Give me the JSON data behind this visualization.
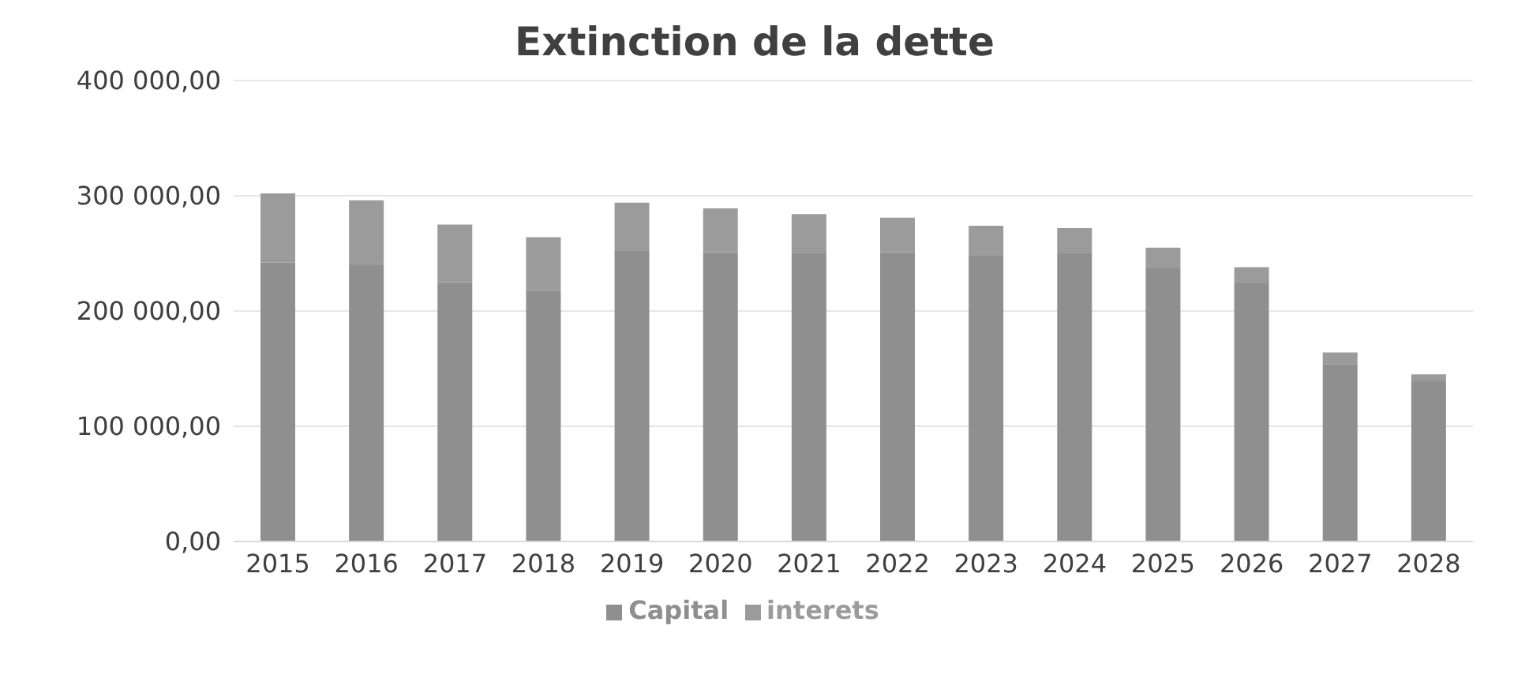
{
  "chart_data": {
    "type": "bar",
    "title": "Extinction de la dette",
    "stacked": true,
    "categories": [
      "2015",
      "2016",
      "2017",
      "2018",
      "2019",
      "2020",
      "2021",
      "2022",
      "2023",
      "2024",
      "2025",
      "2026",
      "2027",
      "2028"
    ],
    "series": [
      {
        "name": "Capital",
        "color": "#8f8f8f",
        "values": [
          242000,
          241000,
          225000,
          218000,
          252000,
          251000,
          250000,
          251000,
          248000,
          250000,
          237000,
          224000,
          154000,
          139000
        ]
      },
      {
        "name": "interets",
        "color": "#9b9b9b",
        "values": [
          60000,
          55000,
          50000,
          46000,
          42000,
          38000,
          34000,
          30000,
          26000,
          22000,
          18000,
          14000,
          10000,
          6000
        ]
      }
    ],
    "ylim": [
      0,
      400000
    ],
    "yticks": [
      {
        "value": 0,
        "label": "0,00"
      },
      {
        "value": 100000,
        "label": "100 000,00"
      },
      {
        "value": 200000,
        "label": "200 000,00"
      },
      {
        "value": 300000,
        "label": "300 000,00"
      },
      {
        "value": 400000,
        "label": "400 000,00"
      }
    ],
    "grid": "y",
    "legend": "bottom"
  }
}
